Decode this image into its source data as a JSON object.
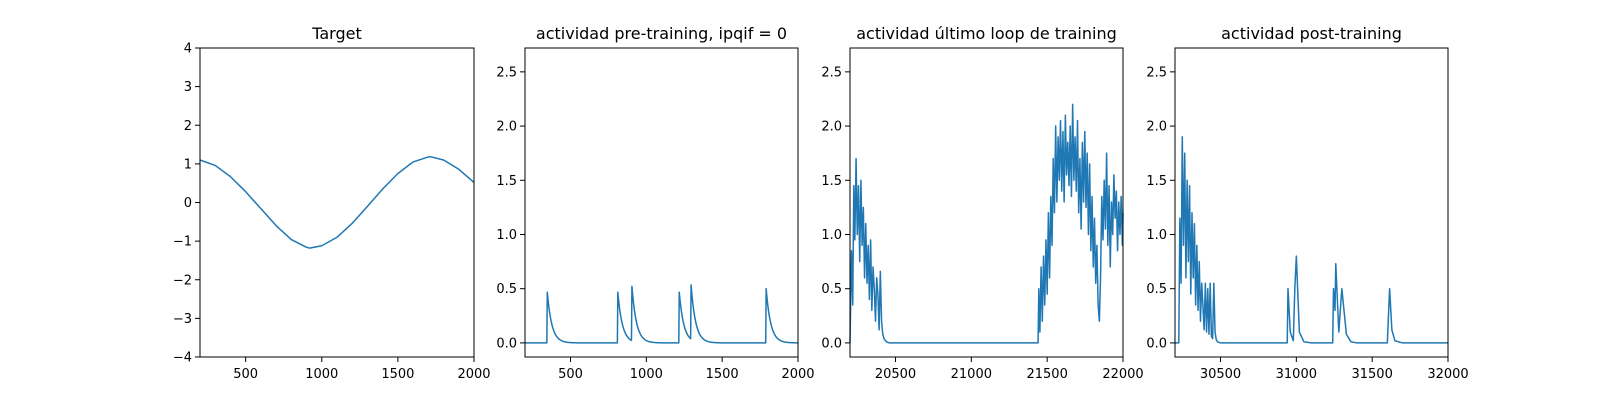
{
  "chart_data": [
    {
      "type": "line",
      "title": "Target",
      "xlim": [
        200,
        2000
      ],
      "ylim": [
        -4,
        4
      ],
      "xticks": [
        500,
        1000,
        1500,
        2000
      ],
      "yticks": [
        -4,
        -3,
        -2,
        -1,
        0,
        1,
        2,
        3,
        4
      ],
      "xticklabels": [
        "500",
        "1000",
        "1500",
        "2000"
      ],
      "yticklabels": [
        "−4",
        "−3",
        "−2",
        "−1",
        "0",
        "1",
        "2",
        "3",
        "4"
      ],
      "series": [
        {
          "x": [
            200,
            300,
            400,
            500,
            600,
            700,
            800,
            900,
            920,
            1000,
            1100,
            1200,
            1300,
            1400,
            1500,
            1600,
            1700,
            1720,
            1800,
            1900,
            2000
          ],
          "y": [
            1.1,
            0.96,
            0.67,
            0.28,
            -0.16,
            -0.6,
            -0.96,
            -1.16,
            -1.18,
            -1.12,
            -0.9,
            -0.54,
            -0.1,
            0.35,
            0.75,
            1.05,
            1.18,
            1.18,
            1.1,
            0.86,
            0.52
          ]
        }
      ],
      "color": "#1f77b4"
    },
    {
      "type": "line",
      "title": "actividad pre-training, ipqif = 0",
      "xlim": [
        200,
        2000
      ],
      "ylim": [
        -0.13,
        2.72
      ],
      "xticks": [
        500,
        1000,
        1500,
        2000
      ],
      "yticks": [
        0,
        0.5,
        1,
        1.5,
        2,
        2.5
      ],
      "xticklabels": [
        "500",
        "1000",
        "1500",
        "2000"
      ],
      "yticklabels": [
        "0.0",
        "0.5",
        "1.0",
        "1.5",
        "2.0",
        "2.5"
      ],
      "spikes": [
        {
          "t": 345,
          "h": 0.5
        },
        {
          "t": 810,
          "h": 0.5
        },
        {
          "t": 905,
          "h": 0.5
        },
        {
          "t": 1215,
          "h": 0.5
        },
        {
          "t": 1295,
          "h": 0.5
        },
        {
          "t": 1790,
          "h": 0.5
        }
      ],
      "decay": 30,
      "color": "#1f77b4"
    },
    {
      "type": "line",
      "title": "actividad último loop de training",
      "xlim": [
        20200,
        22000
      ],
      "ylim": [
        -0.13,
        2.72
      ],
      "xticks": [
        20500,
        21000,
        21500,
        22000
      ],
      "yticks": [
        0,
        0.5,
        1,
        1.5,
        2,
        2.5
      ],
      "xticklabels": [
        "20500",
        "21000",
        "21500",
        "22000"
      ],
      "yticklabels": [
        "0.0",
        "0.5",
        "1.0",
        "1.5",
        "2.0",
        "2.5"
      ],
      "series": [
        {
          "x": [
            20200,
            20210,
            20218,
            20225,
            20232,
            20240,
            20248,
            20256,
            20264,
            20272,
            20280,
            20288,
            20296,
            20304,
            20312,
            20320,
            20328,
            20336,
            20344,
            20352,
            20360,
            20368,
            20376,
            20384,
            20392,
            20400,
            20408,
            20416,
            20424,
            20440,
            20460,
            20480,
            20500,
            21000,
            21440,
            21445,
            21452,
            21460,
            21468,
            21476,
            21484,
            21492,
            21500,
            21508,
            21516,
            21524,
            21532,
            21540,
            21548,
            21556,
            21564,
            21572,
            21580,
            21588,
            21596,
            21604,
            21612,
            21620,
            21628,
            21636,
            21644,
            21652,
            21660,
            21668,
            21676,
            21684,
            21692,
            21700,
            21708,
            21716,
            21724,
            21732,
            21740,
            21748,
            21756,
            21764,
            21772,
            21780,
            21788,
            21796,
            21804,
            21812,
            21820,
            21828,
            21836,
            21844,
            21852,
            21860,
            21868,
            21876,
            21884,
            21892,
            21900,
            21908,
            21916,
            21924,
            21932,
            21940,
            21948,
            21956,
            21964,
            21972,
            21980,
            21988,
            21996,
            22000
          ],
          "y": [
            0,
            0.85,
            0.35,
            1.45,
            0.95,
            1.7,
            1.0,
            1.45,
            0.75,
            1.5,
            0.9,
            1.25,
            0.6,
            1.1,
            0.55,
            0.9,
            0.4,
            0.95,
            0.3,
            0.7,
            0.5,
            0.2,
            0.6,
            0.45,
            0.12,
            0.66,
            0.2,
            0.08,
            0.04,
            0.01,
            0,
            0,
            0,
            0,
            0,
            0.5,
            0.1,
            0.7,
            0.2,
            0.8,
            0.35,
            0.95,
            0.45,
            1.2,
            0.6,
            1.35,
            0.9,
            1.7,
            1.2,
            2.0,
            1.3,
            1.9,
            1.5,
            2.05,
            1.4,
            1.95,
            1.3,
            2.1,
            1.55,
            1.85,
            1.45,
            2.0,
            1.35,
            2.2,
            1.5,
            1.9,
            1.4,
            2.05,
            1.2,
            1.7,
            1.05,
            1.85,
            1.3,
            1.95,
            1.25,
            1.75,
            1.0,
            1.65,
            0.85,
            1.35,
            0.7,
            1.15,
            0.55,
            0.9,
            0.35,
            0.2,
            0.6,
            1.35,
            0.95,
            1.5,
            1.05,
            1.75,
            0.9,
            1.45,
            0.7,
            1.3,
            1.0,
            1.55,
            1.15,
            1.4,
            0.85,
            1.3,
            1.0,
            1.35,
            0.9,
            1.2
          ]
        }
      ],
      "color": "#1f77b4"
    },
    {
      "type": "line",
      "title": "actividad post-training",
      "xlim": [
        30200,
        32000
      ],
      "ylim": [
        -0.13,
        2.72
      ],
      "xticks": [
        30500,
        31000,
        31500,
        32000
      ],
      "yticks": [
        0,
        0.5,
        1,
        1.5,
        2,
        2.5
      ],
      "xticklabels": [
        "30500",
        "31000",
        "31500",
        "32000"
      ],
      "yticklabels": [
        "0.0",
        "0.5",
        "1.0",
        "1.5",
        "2.0",
        "2.5"
      ],
      "series": [
        {
          "x": [
            30200,
            30225,
            30232,
            30240,
            30248,
            30256,
            30264,
            30272,
            30280,
            30288,
            30296,
            30304,
            30312,
            30320,
            30328,
            30336,
            30344,
            30352,
            30360,
            30368,
            30376,
            30384,
            30392,
            30400,
            30408,
            30416,
            30424,
            30432,
            30440,
            30448,
            30456,
            30464,
            30472,
            30480,
            30500,
            30530,
            30560,
            30600,
            30900,
            30940,
            30945,
            30960,
            30980,
            30990,
            31000,
            31020,
            31050,
            31100,
            31240,
            31245,
            31255,
            31260,
            31280,
            31300,
            31330,
            31360,
            31400,
            31600,
            31615,
            31630,
            31650,
            31700,
            32000
          ],
          "y": [
            0,
            0,
            1.15,
            0.55,
            1.9,
            0.9,
            1.75,
            0.6,
            1.5,
            0.75,
            1.45,
            0.45,
            1.2,
            0.6,
            1.1,
            0.35,
            0.9,
            0.3,
            0.75,
            0.2,
            0.55,
            0.35,
            0.12,
            0.55,
            0.1,
            0.5,
            0.08,
            0.55,
            0.06,
            0.04,
            0.55,
            0.1,
            0.03,
            0.01,
            0,
            0,
            0,
            0,
            0,
            0,
            0.5,
            0.1,
            0.02,
            0.5,
            0.8,
            0.1,
            0.01,
            0,
            0,
            0.5,
            0.3,
            0.73,
            0.1,
            0.5,
            0.08,
            0.01,
            0,
            0,
            0.5,
            0.12,
            0.02,
            0,
            0
          ]
        }
      ],
      "color": "#1f77b4"
    }
  ]
}
